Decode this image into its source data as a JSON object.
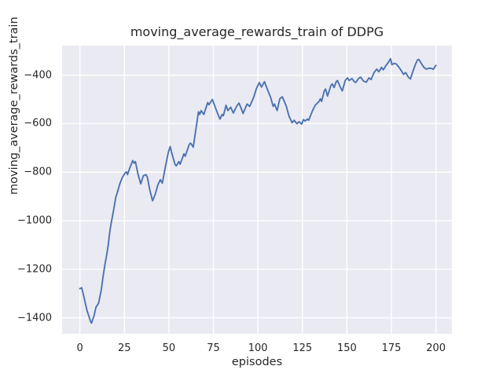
{
  "figure": {
    "background": "#ffffff",
    "plot_background": "#eaeaf2",
    "grid_color": "#ffffff",
    "text_color": "#262626",
    "line_color": "#4c72b0"
  },
  "chart_data": {
    "type": "line",
    "title": "moving_average_rewards_train of DDPG",
    "xlabel": "episodes",
    "ylabel": "moving_average_rewards_train",
    "legend": null,
    "grid": true,
    "xlim": [
      -10,
      209
    ],
    "ylim": [
      -1466,
      -278
    ],
    "x_ticks": [
      0,
      25,
      50,
      75,
      100,
      125,
      150,
      175,
      200
    ],
    "x_tick_labels": [
      "0",
      "25",
      "50",
      "75",
      "100",
      "125",
      "150",
      "175",
      "200"
    ],
    "y_ticks": [
      -400,
      -600,
      -800,
      -1000,
      -1200,
      -1400
    ],
    "y_tick_labels": [
      "−400",
      "−600",
      "−800",
      "−1000",
      "−1200",
      "−1400"
    ],
    "series": [
      {
        "name": "moving_average_rewards_train",
        "color": "#4c72b0",
        "points": [
          [
            0,
            -1280
          ],
          [
            1,
            -1276
          ],
          [
            2,
            -1306
          ],
          [
            4,
            -1370
          ],
          [
            6,
            -1415
          ],
          [
            6.5,
            -1422
          ],
          [
            8,
            -1390
          ],
          [
            9,
            -1357
          ],
          [
            10.5,
            -1340
          ],
          [
            12,
            -1286
          ],
          [
            13,
            -1231
          ],
          [
            14,
            -1183
          ],
          [
            15,
            -1144
          ],
          [
            16,
            -1096
          ],
          [
            16.5,
            -1063
          ],
          [
            17.2,
            -1026
          ],
          [
            18.7,
            -966
          ],
          [
            20.2,
            -902
          ],
          [
            21,
            -885
          ],
          [
            22.4,
            -848
          ],
          [
            23.9,
            -821
          ],
          [
            25.3,
            -805
          ],
          [
            26.1,
            -799
          ],
          [
            26.8,
            -810
          ],
          [
            27.5,
            -794
          ],
          [
            28.3,
            -778
          ],
          [
            29.7,
            -752
          ],
          [
            30.5,
            -763
          ],
          [
            31.2,
            -756
          ],
          [
            32.7,
            -810
          ],
          [
            34.2,
            -848
          ],
          [
            35.6,
            -815
          ],
          [
            37.1,
            -810
          ],
          [
            37.9,
            -821
          ],
          [
            39.3,
            -875
          ],
          [
            40.8,
            -918
          ],
          [
            42.3,
            -891
          ],
          [
            43.8,
            -853
          ],
          [
            45.2,
            -831
          ],
          [
            46.3,
            -845
          ],
          [
            48.2,
            -772
          ],
          [
            49.7,
            -718
          ],
          [
            50.7,
            -694
          ],
          [
            51.9,
            -729
          ],
          [
            53.4,
            -767
          ],
          [
            54.1,
            -774
          ],
          [
            55.6,
            -756
          ],
          [
            56.3,
            -767
          ],
          [
            58.5,
            -724
          ],
          [
            59.2,
            -734
          ],
          [
            61.4,
            -686
          ],
          [
            62.2,
            -680
          ],
          [
            63.7,
            -697
          ],
          [
            65.1,
            -626
          ],
          [
            66.6,
            -551
          ],
          [
            67.3,
            -562
          ],
          [
            68.1,
            -546
          ],
          [
            69.6,
            -562
          ],
          [
            71.8,
            -513
          ],
          [
            72.5,
            -522
          ],
          [
            74.4,
            -500
          ],
          [
            76.2,
            -535
          ],
          [
            77.6,
            -562
          ],
          [
            78.7,
            -581
          ],
          [
            79.9,
            -562
          ],
          [
            80.6,
            -567
          ],
          [
            82.1,
            -524
          ],
          [
            83.1,
            -546
          ],
          [
            84.7,
            -532
          ],
          [
            86.2,
            -556
          ],
          [
            88,
            -529
          ],
          [
            89.4,
            -515
          ],
          [
            90.5,
            -535
          ],
          [
            91.7,
            -558
          ],
          [
            93.9,
            -519
          ],
          [
            95.4,
            -529
          ],
          [
            97.6,
            -492
          ],
          [
            99.2,
            -455
          ],
          [
            100.8,
            -430
          ],
          [
            102,
            -449
          ],
          [
            103.7,
            -427
          ],
          [
            105.7,
            -465
          ],
          [
            107.2,
            -492
          ],
          [
            108.6,
            -529
          ],
          [
            109.4,
            -519
          ],
          [
            110.8,
            -546
          ],
          [
            112.3,
            -497
          ],
          [
            113.7,
            -489
          ],
          [
            116,
            -529
          ],
          [
            117.4,
            -567
          ],
          [
            119.2,
            -596
          ],
          [
            120.4,
            -586
          ],
          [
            121.9,
            -600
          ],
          [
            123.1,
            -592
          ],
          [
            124.6,
            -602
          ],
          [
            125.6,
            -583
          ],
          [
            126.6,
            -589
          ],
          [
            127.8,
            -581
          ],
          [
            128.5,
            -586
          ],
          [
            130.7,
            -546
          ],
          [
            132.2,
            -524
          ],
          [
            134.4,
            -508
          ],
          [
            135.1,
            -497
          ],
          [
            135.8,
            -508
          ],
          [
            137.3,
            -465
          ],
          [
            138,
            -457
          ],
          [
            139.1,
            -486
          ],
          [
            141,
            -443
          ],
          [
            141.8,
            -436
          ],
          [
            142.8,
            -451
          ],
          [
            144,
            -427
          ],
          [
            144.7,
            -422
          ],
          [
            145.9,
            -443
          ],
          [
            147.4,
            -465
          ],
          [
            149.1,
            -422
          ],
          [
            150.3,
            -411
          ],
          [
            151.3,
            -422
          ],
          [
            152.8,
            -414
          ],
          [
            154.3,
            -428
          ],
          [
            155,
            -430
          ],
          [
            156.5,
            -414
          ],
          [
            157.7,
            -408
          ],
          [
            159.4,
            -425
          ],
          [
            160.9,
            -429
          ],
          [
            162.4,
            -411
          ],
          [
            163.6,
            -418
          ],
          [
            165.3,
            -389
          ],
          [
            166.8,
            -375
          ],
          [
            168,
            -386
          ],
          [
            169.5,
            -368
          ],
          [
            170.5,
            -378
          ],
          [
            172,
            -360
          ],
          [
            173.4,
            -346
          ],
          [
            174.5,
            -332
          ],
          [
            175.3,
            -357
          ],
          [
            176.4,
            -351
          ],
          [
            177.8,
            -354
          ],
          [
            179.3,
            -368
          ],
          [
            180.8,
            -384
          ],
          [
            181.8,
            -397
          ],
          [
            183,
            -389
          ],
          [
            184.5,
            -408
          ],
          [
            185.7,
            -416
          ],
          [
            187.1,
            -384
          ],
          [
            188.6,
            -354
          ],
          [
            189.6,
            -338
          ],
          [
            190.4,
            -335
          ],
          [
            191.8,
            -351
          ],
          [
            193.3,
            -368
          ],
          [
            194.5,
            -375
          ],
          [
            196.3,
            -371
          ],
          [
            197.8,
            -373
          ],
          [
            198.5,
            -376
          ],
          [
            200,
            -360
          ]
        ]
      }
    ]
  }
}
